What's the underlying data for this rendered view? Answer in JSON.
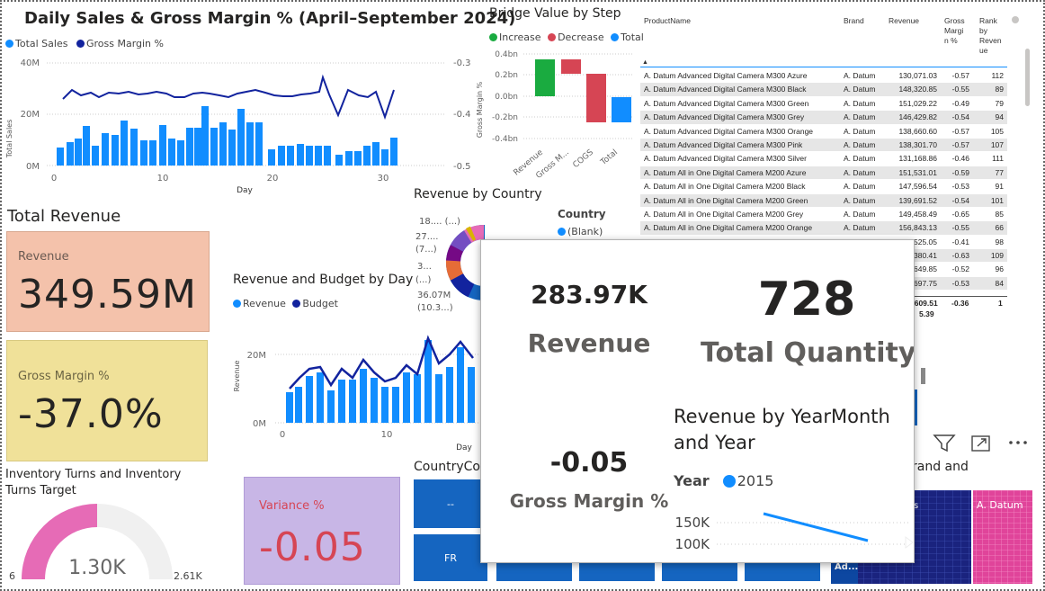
{
  "sales_chart": {
    "title": "Daily Sales & Gross Margin % (April–September 2024)",
    "legend": [
      "Total Sales",
      "Gross Margin %"
    ],
    "y_left_ticks": [
      "40M",
      "20M",
      "0M"
    ],
    "y_right_ticks": [
      "-0.3",
      "-0.4",
      "-0.5"
    ],
    "x_ticks": [
      "0",
      "10",
      "20",
      "30"
    ],
    "x_label": "Day",
    "y_left_label": "Total Sales",
    "y_right_label": "Gross Margin %",
    "colors": {
      "bars": "#118dff",
      "line": "#12239e"
    }
  },
  "bridge_chart": {
    "title": "Bridge Value by Step",
    "legend": [
      "Increase",
      "Decrease",
      "Total"
    ],
    "legend_colors": [
      "#1aab40",
      "#d64554",
      "#118dff"
    ],
    "y_ticks": [
      "0.4bn",
      "0.2bn",
      "0.0bn",
      "-0.2bn",
      "-0.4bn"
    ],
    "x_ticks": [
      "Revenue",
      "Gross M...",
      "COGS",
      "Total"
    ]
  },
  "product_table": {
    "columns": [
      "ProductName",
      "Brand",
      "Revenue",
      "Gross Margin %",
      "Rank by Revenue"
    ],
    "header_lines": {
      "gross": [
        "Gross",
        "Margi",
        "n %"
      ],
      "rank": [
        "Rank",
        "by",
        "Reven",
        "ue"
      ]
    },
    "rows": [
      [
        "A. Datum Advanced Digital Camera M300 Azure",
        "A. Datum",
        "130,071.03",
        "-0.57",
        "112"
      ],
      [
        "A. Datum Advanced Digital Camera M300 Black",
        "A. Datum",
        "148,320.85",
        "-0.55",
        "89"
      ],
      [
        "A. Datum Advanced Digital Camera M300 Green",
        "A. Datum",
        "151,029.22",
        "-0.49",
        "79"
      ],
      [
        "A. Datum Advanced Digital Camera M300 Grey",
        "A. Datum",
        "146,429.82",
        "-0.54",
        "94"
      ],
      [
        "A. Datum Advanced Digital Camera M300 Orange",
        "A. Datum",
        "138,660.60",
        "-0.57",
        "105"
      ],
      [
        "A. Datum Advanced Digital Camera M300 Pink",
        "A. Datum",
        "138,301.70",
        "-0.57",
        "107"
      ],
      [
        "A. Datum Advanced Digital Camera M300 Silver",
        "A. Datum",
        "131,168.86",
        "-0.46",
        "111"
      ],
      [
        "A. Datum All in One Digital Camera M200 Azure",
        "A. Datum",
        "151,531.01",
        "-0.59",
        "77"
      ],
      [
        "A. Datum All in One Digital Camera M200 Black",
        "A. Datum",
        "147,596.54",
        "-0.53",
        "91"
      ],
      [
        "A. Datum All in One Digital Camera M200 Green",
        "A. Datum",
        "139,691.52",
        "-0.54",
        "101"
      ],
      [
        "A. Datum All in One Digital Camera M200 Grey",
        "A. Datum",
        "149,458.49",
        "-0.65",
        "85"
      ],
      [
        "A. Datum All in One Digital Camera M200 Orange",
        "A. Datum",
        "156,843.13",
        "-0.55",
        "66"
      ],
      [
        "",
        "",
        "1..525.05",
        "-0.41",
        "98"
      ],
      [
        "",
        "",
        "...380.41",
        "-0.63",
        "109"
      ],
      [
        "",
        "",
        "...649.85",
        "-0.52",
        "96"
      ],
      [
        "",
        "",
        "...697.75",
        "-0.53",
        "84"
      ]
    ],
    "total_row": {
      "revenue": "..609.51",
      "revenue2": "5.39",
      "margin": "-0.36",
      "rank": "1"
    }
  },
  "total_revenue": {
    "heading": "Total Revenue",
    "label": "Revenue",
    "value": "349.59M",
    "bg": "#f4c2ab"
  },
  "gross_margin_card": {
    "label": "Gross Margin %",
    "value": "-37.0%",
    "bg": "#f0e199"
  },
  "variance_card": {
    "label": "Variance %",
    "value": "-0.05",
    "bg": "#c8b6e6",
    "fg": "#d64554"
  },
  "inventory": {
    "title": "Inventory Turns and Inventory Turns Target",
    "value": "1.30K",
    "min": "6",
    "max": "2.61K",
    "fraction": 0.5,
    "colors": {
      "fill": "#e66bb6",
      "track": "#f0f0f0"
    }
  },
  "revenue_country": {
    "title": "Revenue by Country",
    "labels": [
      "18.... (...)",
      "27....",
      "(7...)",
      "3...",
      "(...)",
      "36.07M",
      "(10.3...)"
    ],
    "legend_title": "Country",
    "legend_item": "(Blank)"
  },
  "budget_chart": {
    "title": "Revenue and Budget by Day",
    "legend": [
      "Revenue",
      "Budget"
    ],
    "y_ticks": [
      "20M",
      "0M"
    ],
    "x_ticks": [
      "0",
      "10"
    ],
    "x_label": "Day",
    "y_label": "Revenue"
  },
  "country_code": {
    "title": "CountryCo",
    "tiles": [
      "--",
      "FR"
    ]
  },
  "brand_treemap": {
    "title_fragment": "rand and",
    "labels": [
      "A. Datum",
      "Ad...",
      "s"
    ]
  },
  "popup": {
    "revenue_value": "283.97K",
    "revenue_label": "Revenue",
    "quantity_value": "728",
    "quantity_label": "Total Quantity",
    "margin_value": "-0.05",
    "margin_label": "Gross Margin %",
    "yearmonth_title": "Revenue by YearMonth and Year",
    "year_legend_title": "Year",
    "year_legend_item": "2015",
    "y_ticks": [
      "150K",
      "100K"
    ]
  }
}
